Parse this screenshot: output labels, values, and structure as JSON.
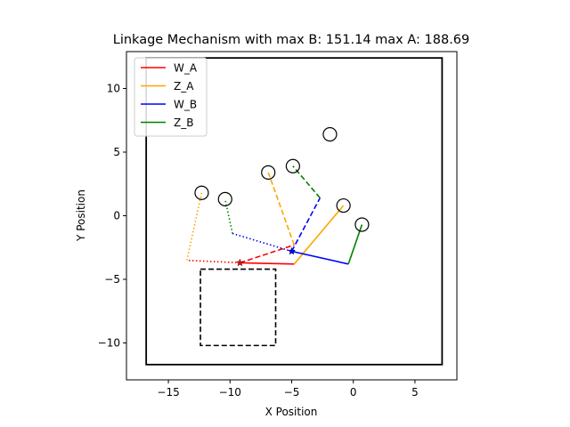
{
  "chart_data": {
    "type": "line",
    "title": "Linkage Mechanism with max B: 151.14 max A: 188.69",
    "xlabel": "X Position",
    "ylabel": "Y Position",
    "xlim": [
      -18.4,
      8.4
    ],
    "ylim": [
      -12.9,
      12.9
    ],
    "x_ticks": [
      -15,
      -10,
      -5,
      0,
      5
    ],
    "y_ticks": [
      -10,
      -5,
      0,
      5,
      10
    ],
    "x_tick_labels": [
      "−15",
      "−10",
      "−5",
      "0",
      "5"
    ],
    "y_tick_labels": [
      "−10",
      "−5",
      "0",
      "5",
      "10"
    ],
    "legend": {
      "position": "top-left",
      "entries": [
        {
          "label": "W_A",
          "color": "#ff0000"
        },
        {
          "label": "Z_A",
          "color": "#ffa500"
        },
        {
          "label": "W_B",
          "color": "#0000ff"
        },
        {
          "label": "Z_B",
          "color": "#008000"
        }
      ]
    },
    "boundary_box": {
      "x": [
        -16.8,
        7.2
      ],
      "y": [
        -11.7,
        12.4
      ]
    },
    "target_box": {
      "x": [
        -12.4,
        -6.3
      ],
      "y": [
        -10.2,
        -4.2
      ]
    },
    "joints": [
      {
        "x": -12.3,
        "y": 1.8
      },
      {
        "x": -10.4,
        "y": 1.3
      },
      {
        "x": -6.9,
        "y": 3.4
      },
      {
        "x": -4.9,
        "y": 3.9
      },
      {
        "x": -1.9,
        "y": 6.4
      },
      {
        "x": -0.8,
        "y": 0.8
      },
      {
        "x": 0.7,
        "y": -0.7
      }
    ],
    "series": [
      {
        "name": "W_A",
        "color": "#ff0000",
        "style": "solid",
        "x": [
          -9.2,
          -4.8
        ],
        "y": [
          -3.7,
          -3.8
        ]
      },
      {
        "name": "Z_A",
        "color": "#ffa500",
        "style": "solid",
        "x": [
          -4.8,
          -0.8
        ],
        "y": [
          -3.8,
          0.8
        ]
      },
      {
        "name": "W_B",
        "color": "#0000ff",
        "style": "solid",
        "x": [
          -5.0,
          -0.4
        ],
        "y": [
          -2.8,
          -3.8
        ]
      },
      {
        "name": "Z_B",
        "color": "#008000",
        "style": "solid",
        "x": [
          -0.4,
          0.7
        ],
        "y": [
          -3.8,
          -0.7
        ]
      },
      {
        "name": "W_A",
        "color": "#ff0000",
        "style": "dashed",
        "x": [
          -9.2,
          -4.8
        ],
        "y": [
          -3.7,
          -2.3
        ]
      },
      {
        "name": "Z_A",
        "color": "#ffa500",
        "style": "dashed",
        "x": [
          -4.8,
          -6.9
        ],
        "y": [
          -2.3,
          3.4
        ]
      },
      {
        "name": "W_B",
        "color": "#0000ff",
        "style": "dashed",
        "x": [
          -5.0,
          -2.7
        ],
        "y": [
          -2.8,
          1.4
        ]
      },
      {
        "name": "Z_B",
        "color": "#008000",
        "style": "dashed",
        "x": [
          -2.7,
          -4.9
        ],
        "y": [
          1.4,
          3.9
        ]
      },
      {
        "name": "W_A",
        "color": "#ff0000",
        "style": "dotted",
        "x": [
          -9.2,
          -13.5
        ],
        "y": [
          -3.7,
          -3.5
        ]
      },
      {
        "name": "Z_A",
        "color": "#ffa500",
        "style": "dotted",
        "x": [
          -13.5,
          -12.3
        ],
        "y": [
          -3.5,
          1.8
        ]
      },
      {
        "name": "W_B",
        "color": "#0000ff",
        "style": "dotted",
        "x": [
          -5.0,
          -9.8
        ],
        "y": [
          -2.8,
          -1.4
        ]
      },
      {
        "name": "Z_B",
        "color": "#008000",
        "style": "dotted",
        "x": [
          -9.8,
          -10.4
        ],
        "y": [
          -1.4,
          1.3
        ]
      }
    ],
    "markers": [
      {
        "x": -9.2,
        "y": -3.7,
        "color": "#ff0000",
        "shape": "star"
      },
      {
        "x": -5.0,
        "y": -2.8,
        "color": "#0000ff",
        "shape": "star"
      }
    ]
  }
}
